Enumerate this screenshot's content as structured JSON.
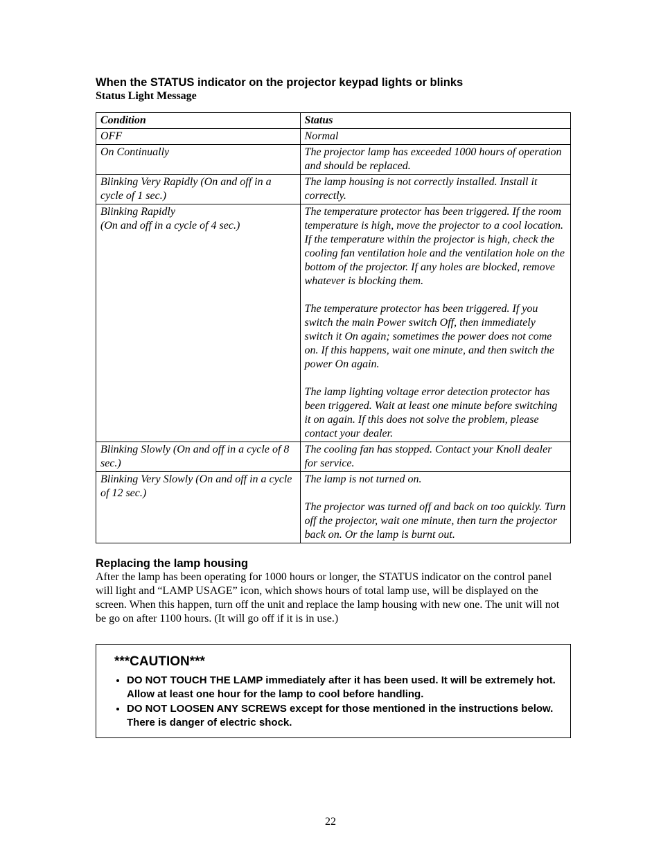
{
  "header": {
    "title": "When the STATUS indicator on the projector keypad lights or blinks",
    "subtitle": "Status Light Message"
  },
  "table": {
    "columns": [
      "Condition",
      "Status"
    ],
    "rows": [
      {
        "condition": "OFF",
        "status": "Normal"
      },
      {
        "condition": "On Continually",
        "status": "The projector lamp has exceeded 1000 hours of operation and should be replaced."
      },
      {
        "condition": "Blinking Very Rapidly (On and off in a cycle of 1 sec.)",
        "status": "The lamp housing is not correctly installed.  Install it correctly."
      },
      {
        "condition_line1": "Blinking Rapidly",
        "condition_line2": "(On and off in a cycle of 4 sec.)",
        "status_p1": "The temperature protector has been triggered.  If the room temperature is high, move the projector to a cool location. If the temperature within the projector is high, check the cooling fan ventilation hole and the ventilation hole on the bottom of the projector.  If any holes are blocked, remove whatever is blocking them.",
        "status_p2": "The temperature protector has been triggered.  If you switch the main Power switch Off, then immediately switch it On again; sometimes the power does not come on.  If this happens, wait one minute, and then switch the power On again.",
        "status_p3": "The lamp lighting voltage error detection protector has been triggered.  Wait at least one minute before switching it on again.  If this does not solve the problem, please contact your dealer."
      },
      {
        "condition": "Blinking Slowly (On and off in a cycle of 8 sec.)",
        "status": "The cooling fan has stopped.  Contact your Knoll dealer for service."
      },
      {
        "condition": "Blinking Very Slowly (On and off in a cycle of 12 sec.)",
        "status_p1": "The lamp is not turned on.",
        "status_p2": "The projector was turned off and back on too quickly.  Turn off the projector, wait one minute, then turn the projector back on.  Or the lamp is burnt out."
      }
    ]
  },
  "replacing": {
    "title": "Replacing the lamp housing",
    "body": "After the lamp has been operating for 1000 hours or longer, the STATUS indicator on the control panel will light and “LAMP USAGE” icon, which shows hours of total lamp use, will be displayed on the screen.  When this happen, turn off the unit and replace the lamp housing with new one.  The unit will not be go on after 1100 hours.  (It will go off if it is in use.)"
  },
  "caution": {
    "title": "***CAUTION***",
    "items": [
      "DO NOT TOUCH THE LAMP immediately after it has been used.  It will be extremely hot.  Allow at least one hour for the lamp to cool before handling.",
      "DO NOT LOOSEN ANY SCREWS except for those mentioned in the instructions below.  There is danger of electric shock."
    ]
  },
  "page_number": "22"
}
